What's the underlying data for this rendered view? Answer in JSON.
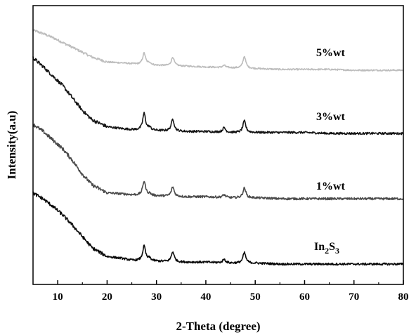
{
  "chart_data": {
    "type": "line",
    "xlabel": "2-Theta (degree)",
    "ylabel": "Intensity(a.u)",
    "xlim": [
      5,
      80
    ],
    "xticks": [
      10,
      20,
      30,
      40,
      50,
      60,
      70,
      80
    ],
    "yticks_shown": false,
    "grid": false,
    "legend": "labels beside curves (right side)",
    "peaks_2theta": [
      23.2,
      27.5,
      28.6,
      33.3,
      43.7,
      47.8
    ],
    "series": [
      {
        "name": "5%wt",
        "color": "#bdbdbd",
        "label": {
          "text": "5%wt",
          "sub": "",
          "tail": ""
        },
        "x": [
          5,
          7,
          9,
          11,
          13,
          15,
          17,
          20,
          23,
          25,
          27.5,
          28.6,
          30,
          33.3,
          36,
          40,
          43.7,
          45,
          47.8,
          50,
          55,
          60,
          65,
          70,
          75,
          80
        ],
        "y": [
          0.84,
          0.8,
          0.75,
          0.69,
          0.63,
          0.57,
          0.51,
          0.45,
          0.44,
          0.43,
          0.56,
          0.44,
          0.41,
          0.51,
          0.4,
          0.39,
          0.41,
          0.38,
          0.52,
          0.37,
          0.36,
          0.36,
          0.36,
          0.35,
          0.35,
          0.35
        ]
      },
      {
        "name": "3%wt",
        "color": "#151515",
        "label": {
          "text": "3%wt",
          "sub": "",
          "tail": ""
        },
        "x": [
          5,
          7,
          9,
          11,
          13,
          15,
          17,
          20,
          23,
          25,
          27.5,
          28.6,
          30,
          33.3,
          36,
          40,
          43.7,
          45,
          47.8,
          50,
          55,
          60,
          65,
          70,
          75,
          80
        ],
        "y": [
          0.95,
          0.86,
          0.76,
          0.66,
          0.53,
          0.4,
          0.3,
          0.23,
          0.21,
          0.2,
          0.37,
          0.22,
          0.19,
          0.31,
          0.18,
          0.18,
          0.22,
          0.17,
          0.29,
          0.17,
          0.17,
          0.17,
          0.16,
          0.16,
          0.16,
          0.16
        ]
      },
      {
        "name": "1%wt",
        "color": "#4a4a4a",
        "label": {
          "text": "1%wt",
          "sub": "",
          "tail": ""
        },
        "x": [
          5,
          7,
          9,
          11,
          13,
          15,
          17,
          20,
          23,
          25,
          27.5,
          28.6,
          30,
          33.3,
          36,
          40,
          43.7,
          45,
          47.8,
          50,
          55,
          60,
          65,
          70,
          75,
          80
        ],
        "y": [
          1.0,
          0.93,
          0.84,
          0.75,
          0.63,
          0.49,
          0.38,
          0.3,
          0.29,
          0.28,
          0.42,
          0.29,
          0.27,
          0.36,
          0.26,
          0.26,
          0.28,
          0.25,
          0.35,
          0.25,
          0.24,
          0.24,
          0.24,
          0.24,
          0.24,
          0.24
        ]
      },
      {
        "name": "In2S3",
        "color": "#0a0a0a",
        "label": {
          "text": "In",
          "sub": "2",
          "tail": "S",
          "sub2": "3"
        },
        "x": [
          5,
          7,
          9,
          11,
          13,
          15,
          17,
          20,
          23,
          25,
          27.5,
          28.6,
          30,
          33.3,
          36,
          40,
          43.7,
          45,
          47.8,
          50,
          55,
          60,
          65,
          70,
          75,
          80
        ],
        "y": [
          1.0,
          0.94,
          0.86,
          0.77,
          0.66,
          0.54,
          0.42,
          0.33,
          0.31,
          0.29,
          0.44,
          0.31,
          0.28,
          0.38,
          0.27,
          0.27,
          0.3,
          0.26,
          0.37,
          0.26,
          0.25,
          0.25,
          0.25,
          0.25,
          0.25,
          0.25
        ]
      }
    ]
  }
}
